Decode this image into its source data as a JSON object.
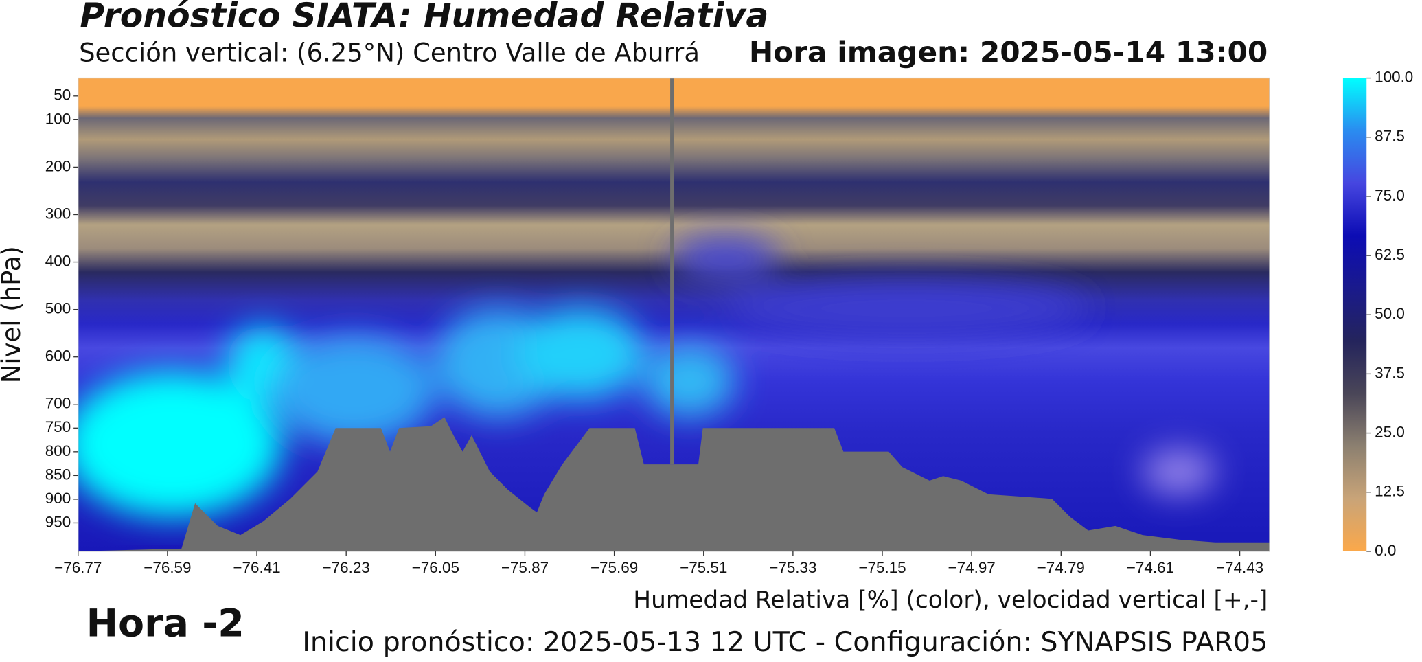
{
  "chart_data": {
    "type": "contour",
    "title": "Pronóstico SIATA: Humedad Relativa",
    "subtitle": "Sección vertical: (6.25°N) Centro Valle de Aburrá",
    "time_label": "Hora imagen: 2025-05-14 13:00",
    "y_label": "Nivel (hPa)",
    "x_label": "Humedad Relativa [%] (color), velocidad vertical [+,-]",
    "hour_label": "Hora -2",
    "footer": "Inicio pronóstico: 2025-05-13 12 UTC - Configuración: SYNAPSIS PAR05",
    "xlim": [
      -76.77,
      -74.37
    ],
    "xticks": [
      {
        "value": -76.77,
        "label": "−76.77"
      },
      {
        "value": -76.59,
        "label": "−76.59"
      },
      {
        "value": -76.41,
        "label": "−76.41"
      },
      {
        "value": -76.23,
        "label": "−76.23"
      },
      {
        "value": -76.05,
        "label": "−76.05"
      },
      {
        "value": -75.87,
        "label": "−75.87"
      },
      {
        "value": -75.69,
        "label": "−75.69"
      },
      {
        "value": -75.51,
        "label": "−75.51"
      },
      {
        "value": -75.33,
        "label": "−75.33"
      },
      {
        "value": -75.15,
        "label": "−75.15"
      },
      {
        "value": -74.97,
        "label": "−74.97"
      },
      {
        "value": -74.79,
        "label": "−74.79"
      },
      {
        "value": -74.61,
        "label": "−74.61"
      },
      {
        "value": -74.43,
        "label": "−74.43"
      }
    ],
    "ylim": [
      1010,
      12
    ],
    "yticks": [
      50,
      100,
      200,
      300,
      400,
      500,
      600,
      700,
      750,
      800,
      850,
      900,
      950
    ],
    "clim": [
      0,
      100
    ],
    "cticks": [
      {
        "value": 0,
        "label": "0.0"
      },
      {
        "value": 12.5,
        "label": "12.5"
      },
      {
        "value": 25,
        "label": "25.0"
      },
      {
        "value": 37.5,
        "label": "37.5"
      },
      {
        "value": 50,
        "label": "50.0"
      },
      {
        "value": 62.5,
        "label": "62.5"
      },
      {
        "value": 75,
        "label": "75.0"
      },
      {
        "value": 87.5,
        "label": "87.5"
      },
      {
        "value": 100,
        "label": "100.0"
      }
    ],
    "colormap": [
      "#fba84a",
      "#c9a478",
      "#8c8070",
      "#4a4658",
      "#24245c",
      "#1a1a8c",
      "#0c0cb4",
      "#4646e0",
      "#2a8cf0",
      "#00ffff"
    ]
  }
}
